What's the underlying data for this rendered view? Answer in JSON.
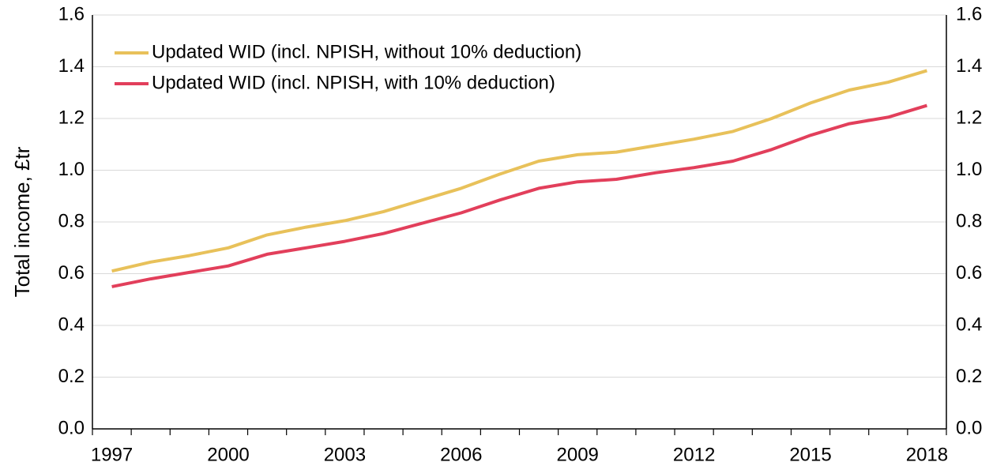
{
  "chart_data": {
    "type": "line",
    "y_label": "Total income, £tr",
    "categories": [
      "1997",
      null,
      null,
      "2000",
      null,
      null,
      "2003",
      null,
      null,
      "2006",
      null,
      null,
      "2009",
      null,
      null,
      "2012",
      null,
      null,
      "2015",
      null,
      null,
      "2018"
    ],
    "series": [
      {
        "name": "Updated WID (incl. NPISH, without 10% deduction)",
        "color": "#e8c15a",
        "values": [
          0.61,
          0.645,
          0.67,
          0.7,
          0.75,
          0.78,
          0.805,
          0.84,
          0.885,
          0.93,
          0.985,
          1.035,
          1.06,
          1.07,
          1.095,
          1.12,
          1.15,
          1.2,
          1.26,
          1.31,
          1.34,
          1.385
        ]
      },
      {
        "name": "Updated WID (incl. NPISH, with 10% deduction)",
        "color": "#e23f5b",
        "values": [
          0.55,
          0.58,
          0.605,
          0.63,
          0.675,
          0.7,
          0.725,
          0.755,
          0.795,
          0.835,
          0.885,
          0.93,
          0.955,
          0.965,
          0.99,
          1.01,
          1.035,
          1.08,
          1.135,
          1.18,
          1.205,
          1.25
        ]
      }
    ],
    "ylim": [
      0,
      1.6
    ],
    "yticks": [
      {
        "value": 0,
        "label": "0.0"
      },
      0.2,
      0.4,
      0.6,
      0.8,
      {
        "value": 1,
        "label": "1.0"
      },
      1.2,
      1.4,
      1.6
    ],
    "y2lim": [
      0,
      1.6
    ],
    "y2ticks": [
      {
        "value": 0,
        "label": "0.0"
      },
      0.2,
      0.4,
      0.6,
      0.8,
      {
        "value": 1,
        "label": "1.0"
      },
      1.2,
      1.4,
      1.6
    ],
    "grid": true,
    "legend": "top-left"
  }
}
